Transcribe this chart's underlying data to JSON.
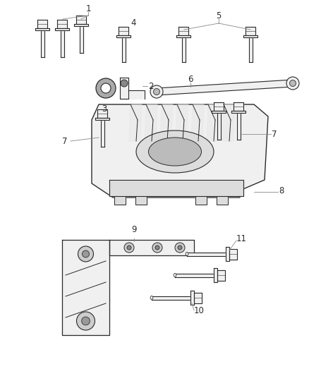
{
  "background_color": "#ffffff",
  "fig_width": 4.38,
  "fig_height": 5.33,
  "lc": "#2a2a2a",
  "lc_light": "#888888",
  "fill_white": "#ffffff",
  "fill_light": "#f0f0f0",
  "fill_mid": "#d8d8d8"
}
